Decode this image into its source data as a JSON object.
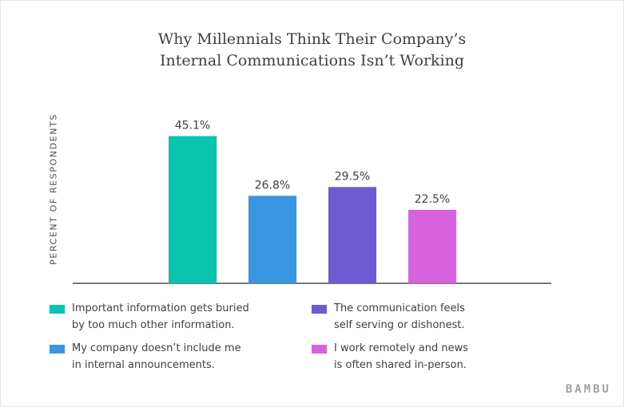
{
  "title_lines": [
    "Why Millennials Think Their Company’s",
    "Internal Communications Isn’t Working"
  ],
  "brand": "BAMBU",
  "chart_data": {
    "type": "bar",
    "title": "Why Millennials Think Their Company’s Internal Communications Isn’t Working",
    "xlabel": "",
    "ylabel": "PERCENT OF RESPONDENTS",
    "ylim": [
      0,
      55
    ],
    "grid": false,
    "legend_position": "bottom",
    "categories": [
      "Important information gets buried by too much other information.",
      "My company doesn’t include me in internal announcements.",
      "The communication feels self serving or dishonest.",
      "I work remotely and news is often shared in-person."
    ],
    "values": [
      45.1,
      26.8,
      29.5,
      22.5
    ],
    "value_labels": [
      "45.1%",
      "26.8%",
      "29.5%",
      "22.5%"
    ],
    "colors": [
      "#0bc4b0",
      "#3a96e3",
      "#6e5ad2",
      "#d861dd"
    ]
  },
  "legend": [
    {
      "lines": [
        "Important information gets buried",
        "by too much other information."
      ],
      "color": "#0bc4b0"
    },
    {
      "lines": [
        "The communication feels",
        "self serving or dishonest."
      ],
      "color": "#6e5ad2"
    },
    {
      "lines": [
        "My company doesn’t include me",
        "in internal announcements."
      ],
      "color": "#3a96e3"
    },
    {
      "lines": [
        "I work remotely and news",
        "is often shared in-person."
      ],
      "color": "#d861dd"
    }
  ]
}
